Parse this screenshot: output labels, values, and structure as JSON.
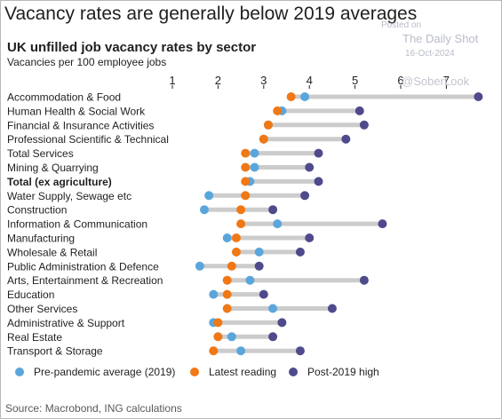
{
  "header": {
    "headline": "Vacancy rates are generally below 2019 averages"
  },
  "watermark": {
    "posted": "Posted on",
    "name": "The Daily Shot",
    "date": "16-Oct-2024",
    "handle": "@SoberLook"
  },
  "footer": {
    "source": "Source: Macrobond, ING calculations"
  },
  "colors": {
    "pre_pandemic": "#5aa6dc",
    "latest": "#f07815",
    "post_2019_high": "#4f4a8c",
    "range_bar": "#cccccc"
  },
  "chart_data": {
    "type": "dot-range",
    "title": "UK unfilled job vacancy rates by sector",
    "subtitle": "Vacancies per 100 employee jobs",
    "xlim": [
      1,
      8
    ],
    "xticks": [
      1,
      2,
      3,
      4,
      5,
      6,
      7
    ],
    "tick_position": "top",
    "grid": false,
    "legend_position": "bottom",
    "series": [
      {
        "key": "pre",
        "name": "Pre-pandemic average (2019)",
        "color": "#5aa6dc"
      },
      {
        "key": "latest",
        "name": "Latest reading",
        "color": "#f07815"
      },
      {
        "key": "high",
        "name": "Post-2019 high",
        "color": "#4f4a8c"
      }
    ],
    "categories": [
      {
        "label": "Accommodation & Food",
        "pre": 3.9,
        "latest": 3.6,
        "high": 7.7
      },
      {
        "label": "Human Health & Social Work",
        "pre": 3.4,
        "latest": 3.3,
        "high": 5.1
      },
      {
        "label": "Financial & Insurance Activities",
        "pre": 3.1,
        "latest": 3.1,
        "high": 5.2
      },
      {
        "label": "Professional Scientific & Technical",
        "pre": 3.0,
        "latest": 3.0,
        "high": 4.8
      },
      {
        "label": "Total Services",
        "pre": 2.8,
        "latest": 2.6,
        "high": 4.2
      },
      {
        "label": "Mining & Quarrying",
        "pre": 2.8,
        "latest": 2.6,
        "high": 4.0
      },
      {
        "label": "Total (ex agriculture)",
        "pre": 2.7,
        "latest": 2.6,
        "high": 4.2,
        "bold": true
      },
      {
        "label": "Water Supply, Sewage etc",
        "pre": 1.8,
        "latest": 2.6,
        "high": 3.9
      },
      {
        "label": "Construction",
        "pre": 1.7,
        "latest": 2.5,
        "high": 3.2
      },
      {
        "label": "Information & Communication",
        "pre": 3.3,
        "latest": 2.5,
        "high": 5.6
      },
      {
        "label": "Manufacturing",
        "pre": 2.2,
        "latest": 2.4,
        "high": 4.0
      },
      {
        "label": "Wholesale & Retail",
        "pre": 2.9,
        "latest": 2.4,
        "high": 3.8
      },
      {
        "label": "Public Administration & Defence",
        "pre": 1.6,
        "latest": 2.3,
        "high": 2.9
      },
      {
        "label": "Arts, Entertainment & Recreation",
        "pre": 2.7,
        "latest": 2.2,
        "high": 5.2
      },
      {
        "label": "Education",
        "pre": 1.9,
        "latest": 2.2,
        "high": 3.0
      },
      {
        "label": "Other Services",
        "pre": 3.2,
        "latest": 2.2,
        "high": 4.5
      },
      {
        "label": "Administrative & Support",
        "pre": 1.9,
        "latest": 2.0,
        "high": 3.4
      },
      {
        "label": "Real Estate",
        "pre": 2.3,
        "latest": 2.0,
        "high": 3.2
      },
      {
        "label": "Transport & Storage",
        "pre": 2.5,
        "latest": 1.9,
        "high": 3.8
      }
    ]
  }
}
